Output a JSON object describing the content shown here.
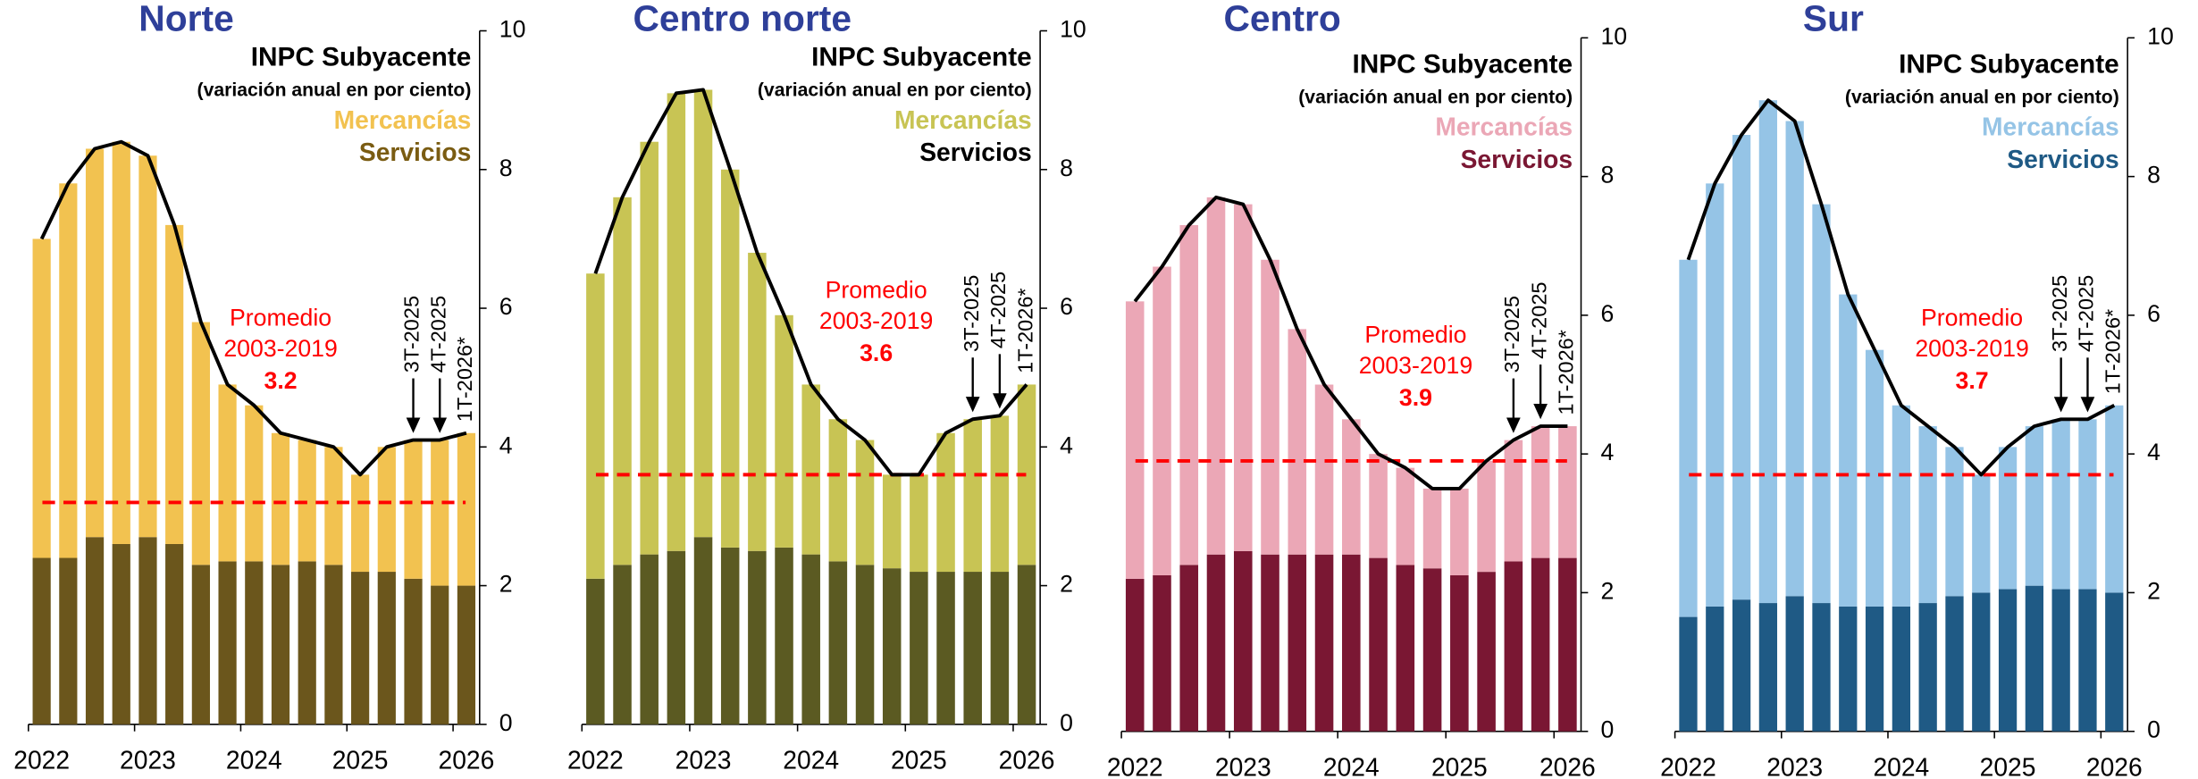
{
  "chart_data": [
    {
      "type": "bar",
      "stacked": true,
      "title": "Norte",
      "subtitle": "(variación anual en por ciento)",
      "categories": [
        "2022",
        null,
        null,
        null,
        "2023",
        null,
        null,
        null,
        "2024",
        null,
        null,
        null,
        "2025",
        null,
        null,
        null,
        "2026"
      ],
      "series": [
        {
          "name": "INPC Subyacente",
          "type": "line",
          "color": "#000000",
          "label_color": "#000000",
          "values": [
            7.0,
            7.8,
            8.3,
            8.4,
            8.2,
            7.2,
            5.8,
            4.9,
            4.6,
            4.2,
            4.1,
            4.0,
            3.6,
            4.0,
            4.1,
            4.1,
            4.2
          ]
        },
        {
          "name": "Mercancías",
          "color": "#F2C250",
          "label_color": "#F2C250",
          "values": [
            4.6,
            5.4,
            5.6,
            5.8,
            5.5,
            4.6,
            3.5,
            2.55,
            2.25,
            1.9,
            1.75,
            1.7,
            1.4,
            1.8,
            2.0,
            2.1,
            2.2
          ]
        },
        {
          "name": "Servicios",
          "color": "#6B561C",
          "label_color": "#7A5C12",
          "values": [
            2.4,
            2.4,
            2.7,
            2.6,
            2.7,
            2.6,
            2.3,
            2.35,
            2.35,
            2.3,
            2.35,
            2.3,
            2.2,
            2.2,
            2.1,
            2.0,
            2.0
          ]
        }
      ],
      "average": 3.2,
      "average_text": [
        "Promedio",
        "2003-2019"
      ],
      "average_color": "#FF0000",
      "annotations": [
        "3T-2025",
        "4T-2025",
        "1T-2026*"
      ],
      "ylim": [
        0,
        10
      ],
      "yticks": [
        0,
        2,
        4,
        6,
        8,
        10
      ]
    },
    {
      "type": "bar",
      "stacked": true,
      "title": "Centro norte",
      "subtitle": "(variación anual en por ciento)",
      "categories": [
        "2022",
        null,
        null,
        null,
        "2023",
        null,
        null,
        null,
        "2024",
        null,
        null,
        null,
        "2025",
        null,
        null,
        null,
        "2026"
      ],
      "series": [
        {
          "name": "INPC Subyacente",
          "type": "line",
          "color": "#000000",
          "label_color": "#000000",
          "values": [
            6.5,
            7.6,
            8.4,
            9.1,
            9.15,
            8.0,
            6.8,
            5.9,
            4.9,
            4.4,
            4.1,
            3.6,
            3.6,
            4.2,
            4.4,
            4.45,
            4.9
          ]
        },
        {
          "name": "Mercancías",
          "color": "#C8C454",
          "label_color": "#C8C454",
          "values": [
            4.4,
            5.3,
            5.95,
            6.6,
            6.45,
            5.45,
            4.3,
            3.35,
            2.45,
            2.05,
            1.8,
            1.35,
            1.4,
            2.0,
            2.2,
            2.25,
            2.6
          ]
        },
        {
          "name": "Servicios",
          "color": "#5B5A22",
          "label_color": "#000000",
          "values": [
            2.1,
            2.3,
            2.45,
            2.5,
            2.7,
            2.55,
            2.5,
            2.55,
            2.45,
            2.35,
            2.3,
            2.25,
            2.2,
            2.2,
            2.2,
            2.2,
            2.3
          ]
        }
      ],
      "average": 3.6,
      "average_text": [
        "Promedio",
        "2003-2019"
      ],
      "average_color": "#FF0000",
      "annotations": [
        "3T-2025",
        "4T-2025",
        "1T-2026*"
      ],
      "ylim": [
        0,
        10
      ],
      "yticks": [
        0,
        2,
        4,
        6,
        8,
        10
      ]
    },
    {
      "type": "bar",
      "stacked": true,
      "title": "Centro",
      "subtitle": "(variación anual en por ciento)",
      "categories": [
        "2022",
        null,
        null,
        null,
        "2023",
        null,
        null,
        null,
        "2024",
        null,
        null,
        null,
        "2025",
        null,
        null,
        null,
        "2026"
      ],
      "series": [
        {
          "name": "INPC Subyacente",
          "type": "line",
          "color": "#000000",
          "label_color": "#000000",
          "values": [
            6.2,
            6.7,
            7.3,
            7.7,
            7.6,
            6.8,
            5.8,
            5.0,
            4.5,
            4.0,
            3.8,
            3.5,
            3.5,
            3.9,
            4.2,
            4.4,
            4.4
          ]
        },
        {
          "name": "Mercancías",
          "color": "#EBA7B6",
          "label_color": "#EBA7B6",
          "values": [
            4.0,
            4.45,
            4.9,
            5.15,
            5.0,
            4.25,
            3.25,
            2.45,
            1.95,
            1.5,
            1.4,
            1.15,
            1.25,
            1.6,
            1.75,
            1.9,
            1.9
          ]
        },
        {
          "name": "Servicios",
          "color": "#7A1733",
          "label_color": "#7A1733",
          "values": [
            2.2,
            2.25,
            2.4,
            2.55,
            2.6,
            2.55,
            2.55,
            2.55,
            2.55,
            2.5,
            2.4,
            2.35,
            2.25,
            2.3,
            2.45,
            2.5,
            2.5
          ]
        }
      ],
      "average": 3.9,
      "average_text": [
        "Promedio",
        "2003-2019"
      ],
      "average_color": "#FF0000",
      "annotations": [
        "3T-2025",
        "4T-2025",
        "1T-2026*"
      ],
      "ylim": [
        0,
        10
      ],
      "yticks": [
        0,
        2,
        4,
        6,
        8,
        10
      ]
    },
    {
      "type": "bar",
      "stacked": true,
      "title": "Sur",
      "subtitle": "(variación anual en por ciento)",
      "categories": [
        "2022",
        null,
        null,
        null,
        "2023",
        null,
        null,
        null,
        "2024",
        null,
        null,
        null,
        "2025",
        null,
        null,
        null,
        "2026"
      ],
      "series": [
        {
          "name": "INPC Subyacente",
          "type": "line",
          "color": "#000000",
          "label_color": "#000000",
          "values": [
            6.8,
            7.9,
            8.6,
            9.1,
            8.8,
            7.6,
            6.3,
            5.5,
            4.7,
            4.4,
            4.1,
            3.7,
            4.1,
            4.4,
            4.5,
            4.5,
            4.7
          ]
        },
        {
          "name": "Mercancías",
          "color": "#95C4E6",
          "label_color": "#95C4E6",
          "values": [
            5.15,
            6.1,
            6.7,
            7.25,
            6.85,
            5.75,
            4.5,
            3.7,
            2.9,
            2.55,
            2.15,
            1.7,
            2.05,
            2.3,
            2.45,
            2.45,
            2.7
          ]
        },
        {
          "name": "Servicios",
          "color": "#1F5A85",
          "label_color": "#1F5A85",
          "values": [
            1.65,
            1.8,
            1.9,
            1.85,
            1.95,
            1.85,
            1.8,
            1.8,
            1.8,
            1.85,
            1.95,
            2.0,
            2.05,
            2.1,
            2.05,
            2.05,
            2.0
          ]
        }
      ],
      "average": 3.7,
      "average_text": [
        "Promedio",
        "2003-2019"
      ],
      "average_color": "#FF0000",
      "annotations": [
        "3T-2025",
        "4T-2025",
        "1T-2026*"
      ],
      "ylim": [
        0,
        10
      ],
      "yticks": [
        0,
        2,
        4,
        6,
        8,
        10
      ]
    }
  ]
}
